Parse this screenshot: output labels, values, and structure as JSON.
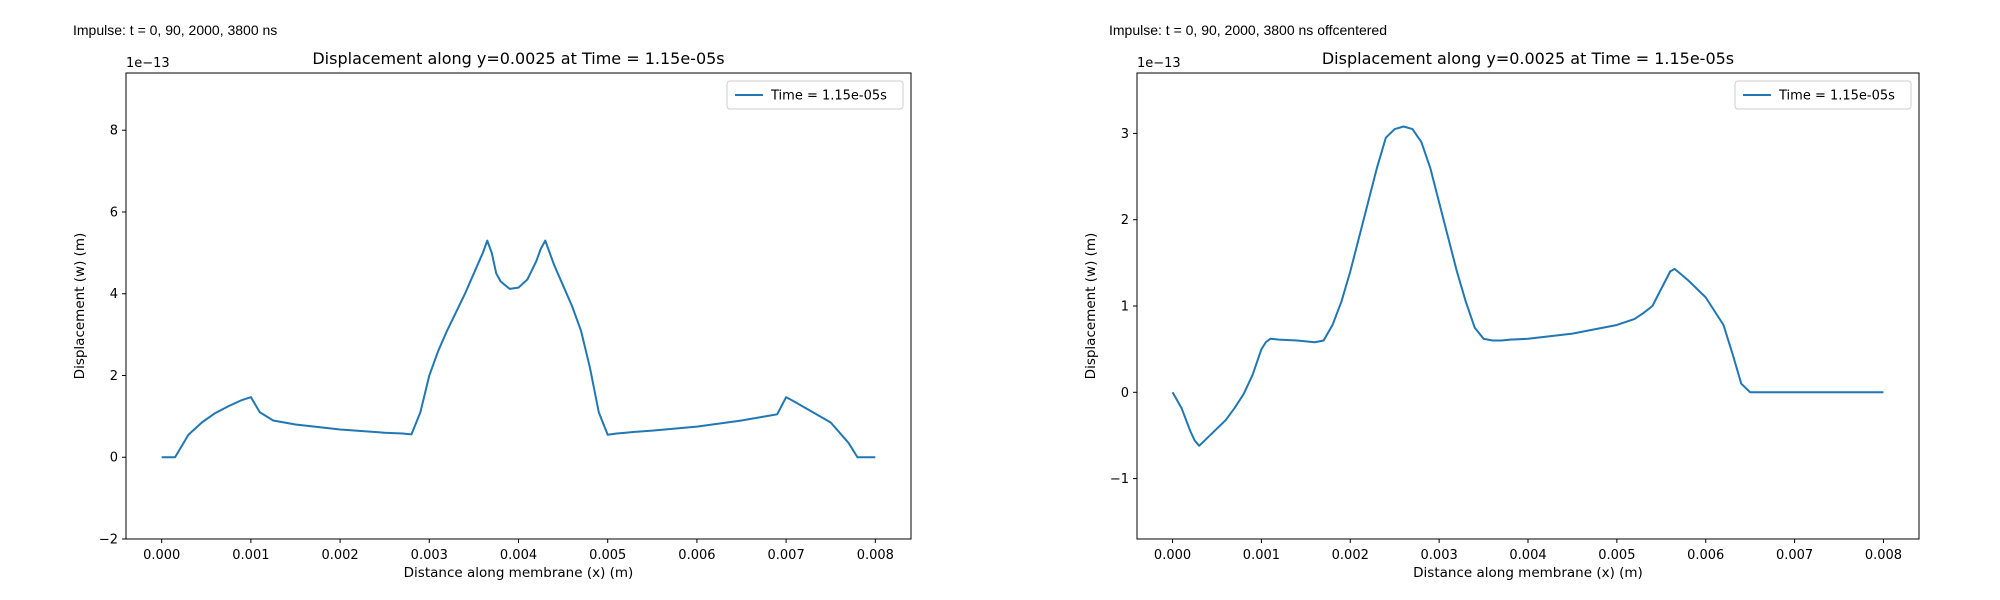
{
  "figure_labels": {
    "left": "Impulse: t = 0, 90, 2000, 3800 ns",
    "right": "Impulse: t = 0, 90, 2000, 3800 ns offcentered"
  },
  "chart_data": [
    {
      "type": "line",
      "title": "Displacement along y=0.0025 at Time = 1.15e-05s",
      "xlabel": "Distance along membrane (x) (m)",
      "ylabel": "Displacement (w) (m)",
      "y_scale_label": "1e−13",
      "xlim": [
        -0.0004,
        0.0084
      ],
      "ylim": [
        -2,
        9.4
      ],
      "xticks": [
        0.0,
        0.001,
        0.002,
        0.003,
        0.004,
        0.005,
        0.006,
        0.007,
        0.008
      ],
      "xtick_labels": [
        "0.000",
        "0.001",
        "0.002",
        "0.003",
        "0.004",
        "0.005",
        "0.006",
        "0.007",
        "0.008"
      ],
      "yticks": [
        -2,
        0,
        2,
        4,
        6,
        8
      ],
      "ytick_labels": [
        "−2",
        "0",
        "2",
        "4",
        "6",
        "8"
      ],
      "grid": false,
      "legend_position": "top-right",
      "color": "#1f77b4",
      "series": [
        {
          "name": "Time = 1.15e-05s",
          "x": [
            0.0,
            0.00015,
            0.0003,
            0.00045,
            0.0006,
            0.00075,
            0.0009,
            0.001,
            0.0011,
            0.00125,
            0.0015,
            0.002,
            0.0025,
            0.0027,
            0.0028,
            0.0029,
            0.003,
            0.0031,
            0.0032,
            0.0033,
            0.0034,
            0.0035,
            0.0036,
            0.00365,
            0.0037,
            0.00375,
            0.0038,
            0.0039,
            0.004,
            0.0041,
            0.0042,
            0.00425,
            0.0043,
            0.00435,
            0.0044,
            0.0045,
            0.0046,
            0.0047,
            0.0048,
            0.0049,
            0.005,
            0.0051,
            0.0052,
            0.0053,
            0.0055,
            0.006,
            0.0065,
            0.0069,
            0.007,
            0.0071,
            0.0073,
            0.0075,
            0.0076,
            0.0077,
            0.0078,
            0.008
          ],
          "y": [
            0.0,
            0.0,
            0.55,
            0.85,
            1.08,
            1.25,
            1.4,
            1.47,
            1.1,
            0.9,
            0.8,
            0.68,
            0.6,
            0.58,
            0.56,
            1.1,
            2.0,
            2.6,
            3.1,
            3.55,
            4.0,
            4.5,
            5.0,
            5.3,
            5.0,
            4.5,
            4.3,
            4.12,
            4.15,
            4.35,
            4.8,
            5.1,
            5.3,
            5.0,
            4.7,
            4.2,
            3.7,
            3.1,
            2.2,
            1.1,
            0.55,
            0.58,
            0.6,
            0.62,
            0.65,
            0.75,
            0.9,
            1.05,
            1.47,
            1.35,
            1.1,
            0.85,
            0.6,
            0.35,
            0.0,
            0.0
          ]
        }
      ]
    },
    {
      "type": "line",
      "title": "Displacement along y=0.0025 at Time = 1.15e-05s",
      "xlabel": "Distance along membrane (x) (m)",
      "ylabel": "Displacement (w) (m)",
      "y_scale_label": "1e−13",
      "xlim": [
        -0.0004,
        0.0084
      ],
      "ylim": [
        -1.7,
        3.7
      ],
      "xticks": [
        0.0,
        0.001,
        0.002,
        0.003,
        0.004,
        0.005,
        0.006,
        0.007,
        0.008
      ],
      "xtick_labels": [
        "0.000",
        "0.001",
        "0.002",
        "0.003",
        "0.004",
        "0.005",
        "0.006",
        "0.007",
        "0.008"
      ],
      "yticks": [
        -1,
        0,
        1,
        2,
        3
      ],
      "ytick_labels": [
        "−1",
        "0",
        "1",
        "2",
        "3"
      ],
      "grid": false,
      "legend_position": "top-right",
      "color": "#1f77b4",
      "series": [
        {
          "name": "Time = 1.15e-05s",
          "x": [
            0.0,
            0.0001,
            0.0002,
            0.00025,
            0.0003,
            0.0004,
            0.0005,
            0.0006,
            0.0007,
            0.0008,
            0.0009,
            0.001,
            0.00105,
            0.0011,
            0.0012,
            0.0014,
            0.0016,
            0.0017,
            0.0018,
            0.0019,
            0.002,
            0.0021,
            0.0022,
            0.0023,
            0.0024,
            0.0025,
            0.0026,
            0.0027,
            0.0028,
            0.0029,
            0.003,
            0.0031,
            0.0032,
            0.0033,
            0.0034,
            0.0035,
            0.0036,
            0.0037,
            0.0038,
            0.004,
            0.0045,
            0.005,
            0.0052,
            0.0053,
            0.0054,
            0.0055,
            0.0056,
            0.00565,
            0.0058,
            0.006,
            0.0062,
            0.0063,
            0.0064,
            0.0065,
            0.007,
            0.0075,
            0.008
          ],
          "y": [
            0.0,
            -0.18,
            -0.45,
            -0.56,
            -0.62,
            -0.52,
            -0.42,
            -0.32,
            -0.18,
            -0.02,
            0.2,
            0.5,
            0.58,
            0.62,
            0.61,
            0.6,
            0.58,
            0.6,
            0.78,
            1.05,
            1.4,
            1.8,
            2.2,
            2.6,
            2.95,
            3.05,
            3.08,
            3.05,
            2.9,
            2.6,
            2.2,
            1.8,
            1.4,
            1.05,
            0.75,
            0.62,
            0.6,
            0.6,
            0.61,
            0.62,
            0.68,
            0.78,
            0.85,
            0.92,
            1.0,
            1.2,
            1.4,
            1.43,
            1.3,
            1.1,
            0.78,
            0.45,
            0.1,
            0.0,
            0.0,
            0.0,
            0.0
          ]
        }
      ]
    }
  ]
}
